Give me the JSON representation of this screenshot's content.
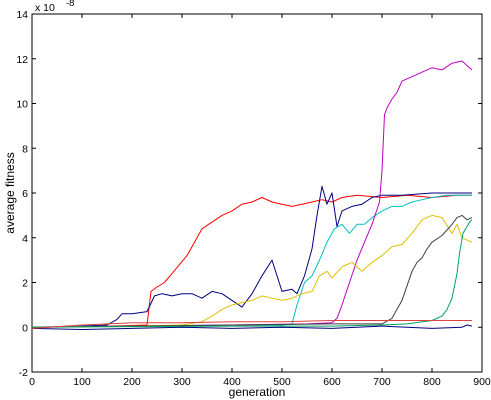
{
  "chart_data": {
    "type": "line",
    "title": "",
    "xlabel": "generation",
    "ylabel": "average fitness",
    "y_exponent_label": "x 10",
    "y_exponent": "-8",
    "xlim": [
      0,
      900
    ],
    "ylim": [
      -2,
      14
    ],
    "x_ticks": [
      0,
      100,
      200,
      300,
      400,
      500,
      600,
      700,
      800,
      900
    ],
    "y_ticks": [
      -2,
      0,
      2,
      4,
      6,
      8,
      10,
      12,
      14
    ],
    "grid": false,
    "legend": "none",
    "series": [
      {
        "color": "#ff0000",
        "points": [
          [
            0,
            0
          ],
          [
            100,
            0.03
          ],
          [
            200,
            0.08
          ],
          [
            230,
            0.1
          ],
          [
            238,
            1.6
          ],
          [
            250,
            1.8
          ],
          [
            265,
            2.0
          ],
          [
            280,
            2.4
          ],
          [
            295,
            2.8
          ],
          [
            310,
            3.2
          ],
          [
            325,
            3.8
          ],
          [
            340,
            4.4
          ],
          [
            360,
            4.7
          ],
          [
            380,
            5.0
          ],
          [
            400,
            5.2
          ],
          [
            420,
            5.5
          ],
          [
            440,
            5.6
          ],
          [
            460,
            5.8
          ],
          [
            480,
            5.6
          ],
          [
            500,
            5.5
          ],
          [
            520,
            5.4
          ],
          [
            540,
            5.5
          ],
          [
            560,
            5.6
          ],
          [
            580,
            5.7
          ],
          [
            600,
            5.6
          ],
          [
            620,
            5.8
          ],
          [
            650,
            5.9
          ],
          [
            700,
            5.8
          ],
          [
            750,
            5.9
          ],
          [
            800,
            5.8
          ],
          [
            850,
            5.9
          ],
          [
            880,
            5.9
          ]
        ]
      },
      {
        "color": "#000080",
        "points": [
          [
            0,
            0
          ],
          [
            100,
            0.05
          ],
          [
            150,
            0.1
          ],
          [
            170,
            0.35
          ],
          [
            180,
            0.6
          ],
          [
            200,
            0.6
          ],
          [
            230,
            0.7
          ],
          [
            245,
            1.4
          ],
          [
            260,
            1.5
          ],
          [
            280,
            1.4
          ],
          [
            300,
            1.5
          ],
          [
            320,
            1.5
          ],
          [
            340,
            1.3
          ],
          [
            360,
            1.6
          ],
          [
            380,
            1.5
          ],
          [
            400,
            1.2
          ],
          [
            420,
            0.9
          ],
          [
            440,
            1.5
          ],
          [
            460,
            2.3
          ],
          [
            480,
            3.0
          ],
          [
            500,
            1.6
          ],
          [
            520,
            1.7
          ],
          [
            530,
            1.5
          ],
          [
            545,
            2.3
          ],
          [
            560,
            3.5
          ],
          [
            570,
            5.0
          ],
          [
            580,
            6.3
          ],
          [
            590,
            5.5
          ],
          [
            600,
            6.0
          ],
          [
            610,
            4.5
          ],
          [
            620,
            5.2
          ],
          [
            640,
            5.4
          ],
          [
            660,
            5.5
          ],
          [
            680,
            5.8
          ],
          [
            700,
            5.9
          ],
          [
            740,
            5.9
          ],
          [
            800,
            6.0
          ],
          [
            880,
            6.0
          ]
        ]
      },
      {
        "color": "#00bfbf",
        "points": [
          [
            0,
            0
          ],
          [
            200,
            0.05
          ],
          [
            400,
            0.1
          ],
          [
            500,
            0.1
          ],
          [
            520,
            0.15
          ],
          [
            530,
            1.0
          ],
          [
            545,
            2.0
          ],
          [
            560,
            2.3
          ],
          [
            575,
            3.0
          ],
          [
            590,
            3.8
          ],
          [
            605,
            4.4
          ],
          [
            620,
            4.6
          ],
          [
            635,
            4.2
          ],
          [
            650,
            4.6
          ],
          [
            665,
            4.6
          ],
          [
            680,
            4.9
          ],
          [
            700,
            5.2
          ],
          [
            720,
            5.4
          ],
          [
            740,
            5.4
          ],
          [
            760,
            5.6
          ],
          [
            780,
            5.7
          ],
          [
            800,
            5.8
          ],
          [
            830,
            5.9
          ],
          [
            860,
            5.9
          ],
          [
            880,
            5.9
          ]
        ]
      },
      {
        "color": "#c000c0",
        "points": [
          [
            0,
            0
          ],
          [
            200,
            0.05
          ],
          [
            400,
            0.1
          ],
          [
            550,
            0.15
          ],
          [
            600,
            0.2
          ],
          [
            610,
            0.4
          ],
          [
            620,
            1.0
          ],
          [
            635,
            2.0
          ],
          [
            650,
            3.0
          ],
          [
            665,
            3.8
          ],
          [
            680,
            4.6
          ],
          [
            695,
            5.6
          ],
          [
            700,
            7.0
          ],
          [
            705,
            9.5
          ],
          [
            710,
            9.8
          ],
          [
            720,
            10.2
          ],
          [
            730,
            10.5
          ],
          [
            740,
            11.0
          ],
          [
            760,
            11.2
          ],
          [
            780,
            11.4
          ],
          [
            800,
            11.6
          ],
          [
            820,
            11.5
          ],
          [
            840,
            11.8
          ],
          [
            860,
            11.9
          ],
          [
            875,
            11.6
          ],
          [
            880,
            11.5
          ]
        ]
      },
      {
        "color": "#e0c000",
        "points": [
          [
            0,
            0
          ],
          [
            200,
            0.05
          ],
          [
            300,
            0.1
          ],
          [
            340,
            0.25
          ],
          [
            360,
            0.5
          ],
          [
            380,
            0.8
          ],
          [
            400,
            1.0
          ],
          [
            420,
            1.1
          ],
          [
            440,
            1.2
          ],
          [
            460,
            1.4
          ],
          [
            480,
            1.3
          ],
          [
            500,
            1.2
          ],
          [
            520,
            1.3
          ],
          [
            540,
            1.5
          ],
          [
            560,
            1.6
          ],
          [
            575,
            2.3
          ],
          [
            590,
            2.5
          ],
          [
            600,
            2.2
          ],
          [
            620,
            2.7
          ],
          [
            640,
            2.9
          ],
          [
            660,
            2.5
          ],
          [
            680,
            2.9
          ],
          [
            700,
            3.2
          ],
          [
            720,
            3.6
          ],
          [
            740,
            3.7
          ],
          [
            760,
            4.2
          ],
          [
            780,
            4.8
          ],
          [
            800,
            5.0
          ],
          [
            820,
            4.9
          ],
          [
            840,
            4.2
          ],
          [
            850,
            4.6
          ],
          [
            860,
            4.0
          ],
          [
            880,
            3.8
          ]
        ]
      },
      {
        "color": "#404040",
        "points": [
          [
            0,
            0
          ],
          [
            200,
            0.05
          ],
          [
            400,
            0.1
          ],
          [
            600,
            0.15
          ],
          [
            700,
            0.15
          ],
          [
            720,
            0.4
          ],
          [
            740,
            1.2
          ],
          [
            760,
            2.5
          ],
          [
            770,
            2.9
          ],
          [
            780,
            3.1
          ],
          [
            790,
            3.5
          ],
          [
            800,
            3.8
          ],
          [
            820,
            4.1
          ],
          [
            840,
            4.6
          ],
          [
            850,
            4.9
          ],
          [
            860,
            5.0
          ],
          [
            870,
            4.8
          ],
          [
            880,
            4.9
          ]
        ]
      },
      {
        "color": "#00a060",
        "points": [
          [
            0,
            0
          ],
          [
            200,
            0.03
          ],
          [
            400,
            0.05
          ],
          [
            600,
            0.05
          ],
          [
            700,
            0.1
          ],
          [
            750,
            0.15
          ],
          [
            800,
            0.3
          ],
          [
            820,
            0.5
          ],
          [
            830,
            0.8
          ],
          [
            840,
            1.3
          ],
          [
            850,
            2.4
          ],
          [
            855,
            3.3
          ],
          [
            862,
            4.2
          ],
          [
            870,
            4.5
          ],
          [
            875,
            4.7
          ],
          [
            880,
            4.8
          ]
        ]
      },
      {
        "color": "#000080",
        "points": [
          [
            0,
            -0.05
          ],
          [
            100,
            -0.1
          ],
          [
            200,
            -0.05
          ],
          [
            300,
            0.0
          ],
          [
            400,
            -0.05
          ],
          [
            500,
            0.0
          ],
          [
            600,
            -0.05
          ],
          [
            700,
            0.05
          ],
          [
            800,
            -0.05
          ],
          [
            860,
            0.0
          ],
          [
            870,
            0.1
          ],
          [
            880,
            0.05
          ]
        ]
      },
      {
        "color": "#e04040",
        "points": [
          [
            0,
            -0.05
          ],
          [
            100,
            0.1
          ],
          [
            200,
            0.2
          ],
          [
            300,
            0.2
          ],
          [
            400,
            0.25
          ],
          [
            500,
            0.25
          ],
          [
            600,
            0.3
          ],
          [
            700,
            0.3
          ],
          [
            880,
            0.3
          ]
        ]
      }
    ]
  }
}
